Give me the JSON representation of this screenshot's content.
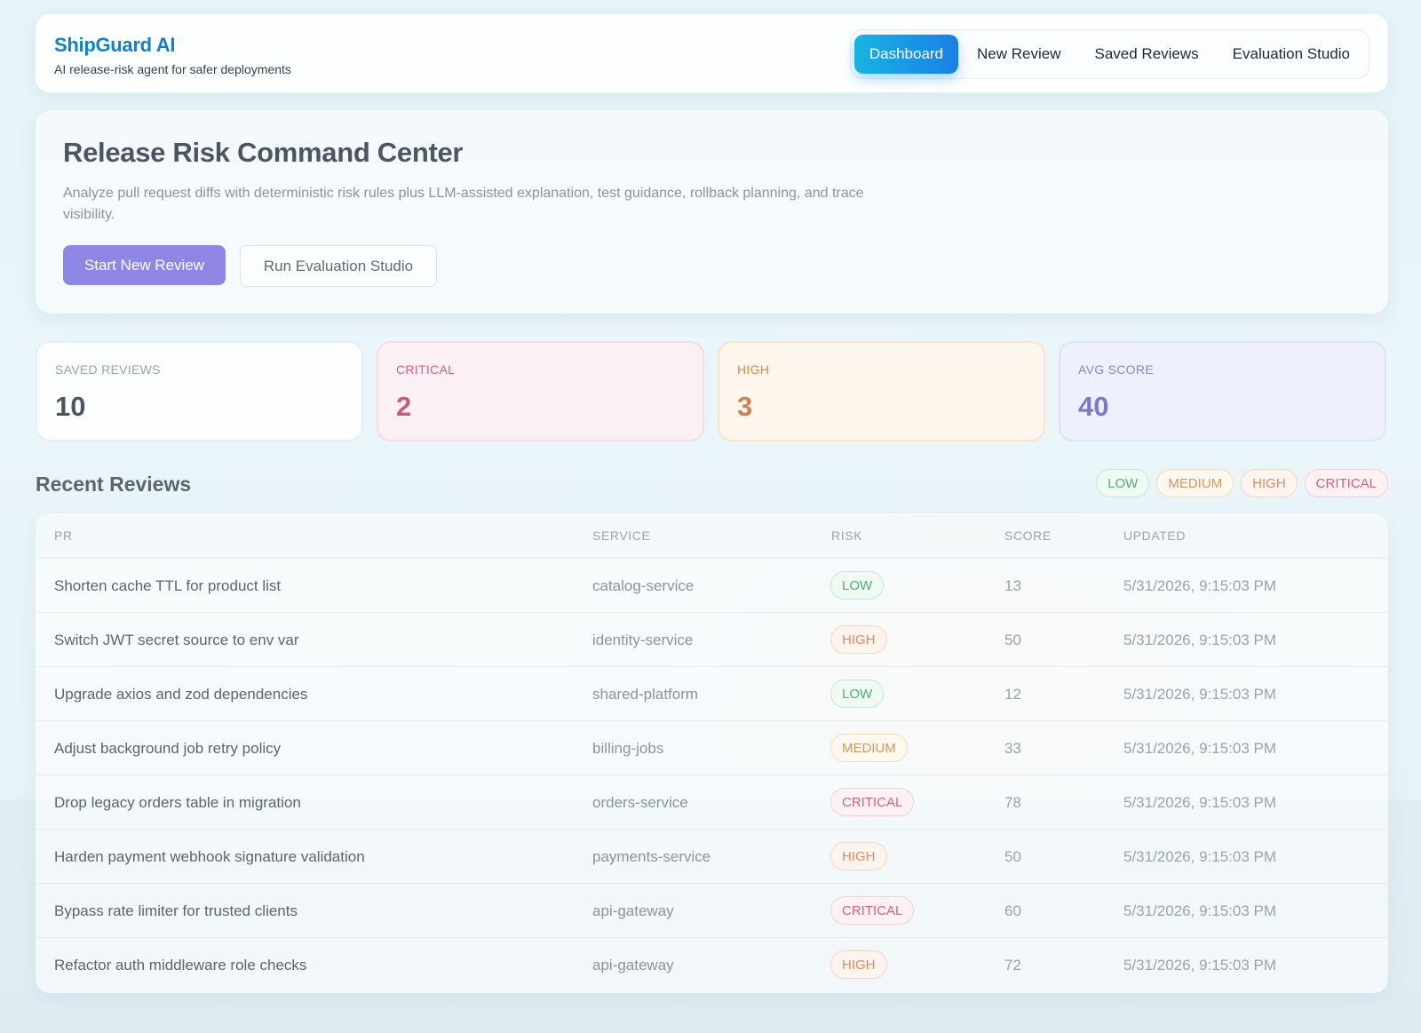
{
  "app": {
    "title": "ShipGuard AI",
    "subtitle": "AI release-risk agent for safer deployments"
  },
  "nav": {
    "items": [
      {
        "label": "Dashboard",
        "active": true
      },
      {
        "label": "New Review",
        "active": false
      },
      {
        "label": "Saved Reviews",
        "active": false
      },
      {
        "label": "Evaluation Studio",
        "active": false
      }
    ]
  },
  "hero": {
    "title": "Release Risk Command Center",
    "description": "Analyze pull request diffs with deterministic risk rules plus LLM-assisted explanation, test guidance, rollback planning, and trace visibility.",
    "primary_button": "Start New Review",
    "secondary_button": "Run Evaluation Studio"
  },
  "stats": [
    {
      "label": "SAVED REVIEWS",
      "value": "10"
    },
    {
      "label": "CRITICAL",
      "value": "2"
    },
    {
      "label": "HIGH",
      "value": "3"
    },
    {
      "label": "AVG SCORE",
      "value": "40"
    }
  ],
  "recent": {
    "title": "Recent Reviews",
    "legend": [
      "LOW",
      "MEDIUM",
      "HIGH",
      "CRITICAL"
    ],
    "columns": [
      "PR",
      "SERVICE",
      "RISK",
      "SCORE",
      "UPDATED"
    ],
    "rows": [
      {
        "pr": "Shorten cache TTL for product list",
        "service": "catalog-service",
        "risk": "LOW",
        "score": "13",
        "updated": "5/31/2026, 9:15:03 PM"
      },
      {
        "pr": "Switch JWT secret source to env var",
        "service": "identity-service",
        "risk": "HIGH",
        "score": "50",
        "updated": "5/31/2026, 9:15:03 PM"
      },
      {
        "pr": "Upgrade axios and zod dependencies",
        "service": "shared-platform",
        "risk": "LOW",
        "score": "12",
        "updated": "5/31/2026, 9:15:03 PM"
      },
      {
        "pr": "Adjust background job retry policy",
        "service": "billing-jobs",
        "risk": "MEDIUM",
        "score": "33",
        "updated": "5/31/2026, 9:15:03 PM"
      },
      {
        "pr": "Drop legacy orders table in migration",
        "service": "orders-service",
        "risk": "CRITICAL",
        "score": "78",
        "updated": "5/31/2026, 9:15:03 PM"
      },
      {
        "pr": "Harden payment webhook signature validation",
        "service": "payments-service",
        "risk": "HIGH",
        "score": "50",
        "updated": "5/31/2026, 9:15:03 PM"
      },
      {
        "pr": "Bypass rate limiter for trusted clients",
        "service": "api-gateway",
        "risk": "CRITICAL",
        "score": "60",
        "updated": "5/31/2026, 9:15:03 PM"
      },
      {
        "pr": "Refactor auth middleware role checks",
        "service": "api-gateway",
        "risk": "HIGH",
        "score": "72",
        "updated": "5/31/2026, 9:15:03 PM"
      }
    ]
  },
  "colors": {
    "brand": "#1181c8",
    "nav_active": "#1a7ee8",
    "primary_button": "#8f87e6",
    "low": "#55a97a",
    "medium": "#d4975a",
    "high": "#d98a64",
    "critical": "#d65f80"
  }
}
